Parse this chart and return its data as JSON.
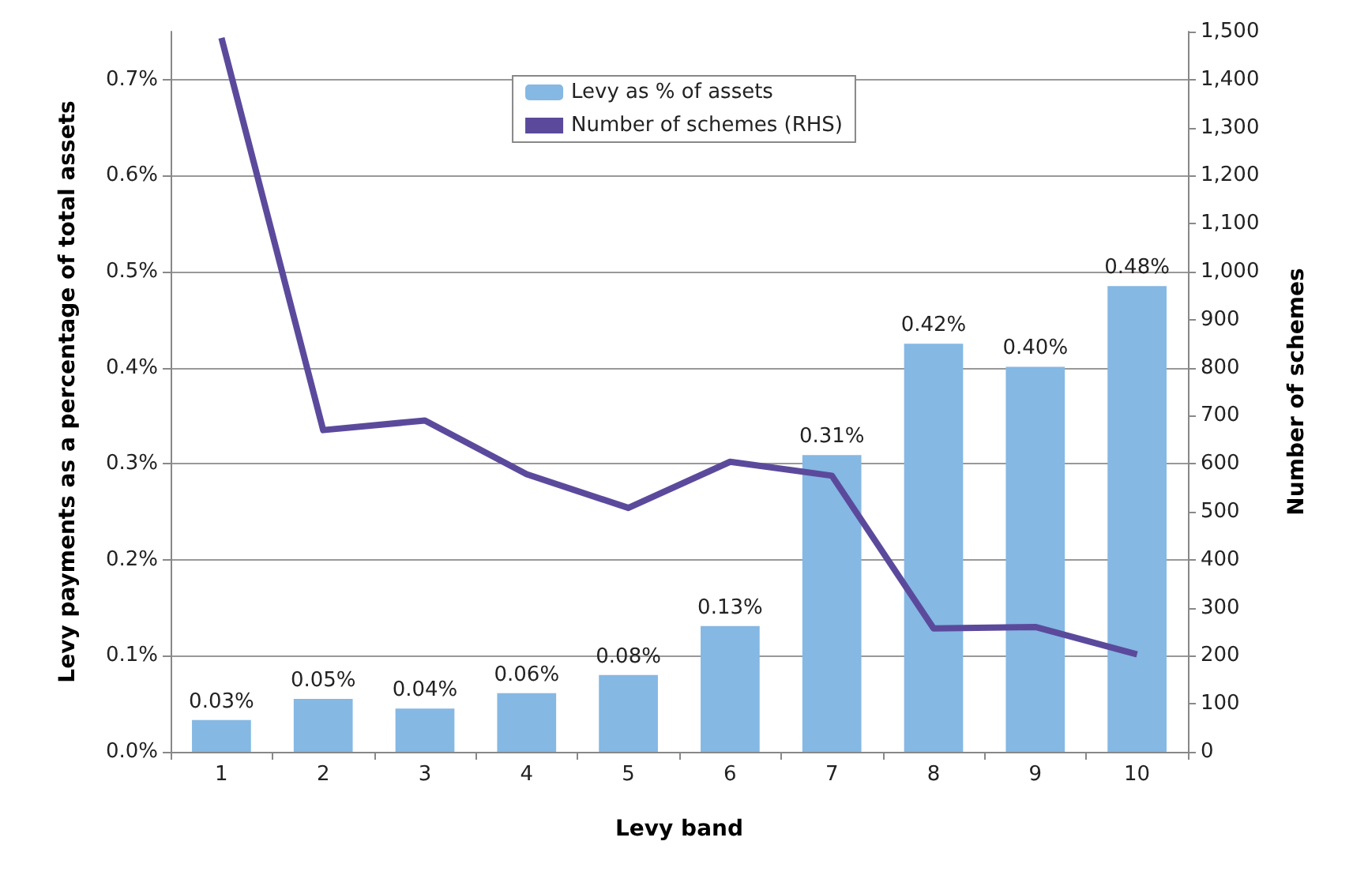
{
  "chart_data": {
    "type": "bar",
    "xlabel": "Levy band",
    "ylabel": "Levy payments as a percentage of total assets",
    "y2label": "Number of schemes",
    "categories": [
      "1",
      "2",
      "3",
      "4",
      "5",
      "6",
      "7",
      "8",
      "9",
      "10"
    ],
    "series": [
      {
        "name": "Levy as % of assets",
        "color": "#85b8e3",
        "values": [
          0.033,
          0.055,
          0.045,
          0.061,
          0.08,
          0.131,
          0.309,
          0.425,
          0.401,
          0.485
        ],
        "value_labels": [
          "0.03%",
          "0.05%",
          "0.04%",
          "0.06%",
          "0.08%",
          "0.13%",
          "0.31%",
          "0.42%",
          "0.40%",
          "0.48%"
        ]
      },
      {
        "name": "Number of schemes (RHS)",
        "type": "line",
        "axis": "y2",
        "color": "#5b4a9c",
        "values": [
          1487,
          670,
          690,
          578,
          508,
          604,
          575,
          257,
          260,
          203
        ]
      }
    ],
    "ylim": [
      0,
      0.75
    ],
    "yticks": [
      {
        "value": 0,
        "label": "0.0%"
      },
      {
        "value": 0.1,
        "label": "0.1%"
      },
      {
        "value": 0.2,
        "label": "0.2%"
      },
      {
        "value": 0.3,
        "label": "0.3%"
      },
      {
        "value": 0.4,
        "label": "0.4%"
      },
      {
        "value": 0.5,
        "label": "0.5%"
      },
      {
        "value": 0.6,
        "label": "0.6%"
      },
      {
        "value": 0.7,
        "label": "0.7%"
      }
    ],
    "y2lim": [
      0,
      1500
    ],
    "y2ticks": [
      0,
      100,
      200,
      300,
      400,
      500,
      600,
      700,
      800,
      900,
      {
        "value": 1000,
        "label": "1,000"
      },
      {
        "value": 1100,
        "label": "1,100"
      },
      {
        "value": 1200,
        "label": "1,200"
      },
      {
        "value": 1300,
        "label": "1,300"
      },
      {
        "value": 1400,
        "label": "1,400"
      },
      {
        "value": 1500,
        "label": "1,500"
      }
    ],
    "grid": "y",
    "legend": "top",
    "marker": "none"
  }
}
